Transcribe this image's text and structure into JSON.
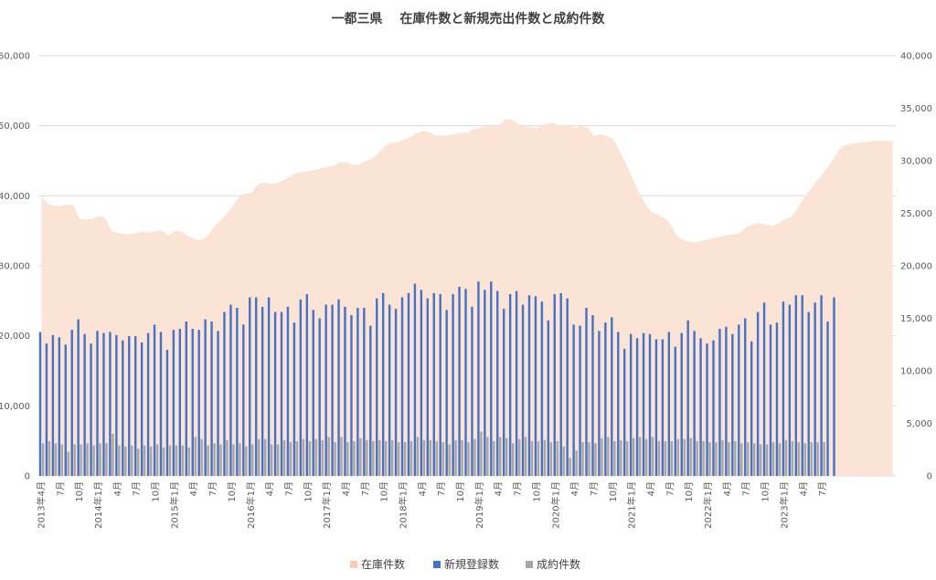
{
  "chart_data": {
    "type": "bar",
    "title": "一都三県　 在庫件数と新規売出件数と成約件数",
    "left_axis": {
      "min": 0,
      "max": 60000,
      "ticks": [
        "0",
        "10,000",
        "20,000",
        "30,000",
        "40,000",
        "50,000",
        "60,000"
      ]
    },
    "right_axis": {
      "min": 0,
      "max": 40000,
      "ticks": [
        "0",
        "5,000",
        "10,000",
        "15,000",
        "20,000",
        "25,000",
        "30,000",
        "35,000",
        "40,000"
      ]
    },
    "x_labels": [
      "2013年4月",
      "7月",
      "10月",
      "2014年1月",
      "4月",
      "7月",
      "10月",
      "2015年1月",
      "4月",
      "7月",
      "10月",
      "2016年1月",
      "4月",
      "7月",
      "10月",
      "2017年1月",
      "4月",
      "7月",
      "10月",
      "2018年1月",
      "4月",
      "7月",
      "10月",
      "2019年1月",
      "4月",
      "7月",
      "10月",
      "2020年1月",
      "4月",
      "7月",
      "10月",
      "2021年1月",
      "4月",
      "7月",
      "10月",
      "2022年1月",
      "4月",
      "7月",
      "10月",
      "2023年1月",
      "4月",
      "7月"
    ],
    "grid": true,
    "legend_position": "bottom",
    "series": [
      {
        "name": "在庫件数",
        "axis": "left",
        "style": "area",
        "color": "#fbe3d6",
        "values": [
          39900,
          38800,
          38600,
          38500,
          38800,
          38700,
          36700,
          36600,
          36700,
          37100,
          36900,
          35000,
          34700,
          34500,
          34500,
          34700,
          34900,
          34700,
          35000,
          35000,
          34300,
          35000,
          34900,
          34300,
          33900,
          33600,
          34100,
          35400,
          36300,
          37200,
          38400,
          39800,
          40300,
          40400,
          41600,
          41900,
          41700,
          41800,
          42200,
          42700,
          43200,
          43400,
          43500,
          43700,
          43900,
          44100,
          44300,
          44800,
          44800,
          44400,
          44500,
          44900,
          45300,
          46100,
          47000,
          47600,
          47600,
          48000,
          48400,
          48900,
          49200,
          49100,
          48600,
          48600,
          48600,
          48800,
          49000,
          49000,
          49500,
          49700,
          49900,
          49900,
          50000,
          50900,
          50900,
          50300,
          49900,
          49800,
          49700,
          50100,
          50400,
          50300,
          50000,
          50200,
          49700,
          50000,
          49700,
          48600,
          48800,
          48500,
          48100,
          46400,
          44600,
          42600,
          40700,
          38900,
          37700,
          37300,
          36900,
          36000,
          34300,
          33700,
          33400,
          33300,
          33600,
          33800,
          34000,
          34200,
          34400,
          34500,
          34700,
          35600,
          35900,
          36100,
          35900,
          35700,
          36000,
          36600,
          37000,
          38200,
          39600,
          40800,
          42000,
          43100,
          44400,
          45700,
          47100,
          47300,
          47500,
          47600,
          47700,
          47800,
          47900,
          47800,
          47900
        ]
      },
      {
        "name": "新規登録数",
        "axis": "right",
        "style": "bar",
        "color": "#4472c4",
        "values": [
          13700,
          12600,
          13400,
          13200,
          12500,
          13900,
          14900,
          13500,
          12600,
          13800,
          13600,
          13700,
          13400,
          12900,
          13300,
          13300,
          12700,
          13600,
          14400,
          13700,
          12000,
          13900,
          14000,
          14700,
          14000,
          13900,
          14900,
          14700,
          13800,
          15600,
          16300,
          16000,
          14400,
          17000,
          17000,
          16100,
          17000,
          15600,
          15600,
          16100,
          14600,
          16800,
          17300,
          15800,
          15000,
          16300,
          16300,
          16800,
          16100,
          15300,
          16000,
          16000,
          14300,
          16900,
          17400,
          16300,
          15900,
          17000,
          17400,
          18300,
          17700,
          16900,
          17400,
          17300,
          15800,
          17300,
          18000,
          17800,
          16100,
          18500,
          17700,
          18500,
          17600,
          15900,
          17300,
          17600,
          16300,
          17200,
          17100,
          16600,
          14800,
          17300,
          17400,
          16900,
          14400,
          14300,
          16000,
          15300,
          13800,
          14600,
          15100,
          13700,
          12100,
          13500,
          13100,
          13600,
          13500,
          13000,
          13000,
          13700,
          12300,
          13600,
          14800,
          13800,
          13100,
          12600,
          12900,
          14000,
          14200,
          13500,
          14400,
          15000,
          12800,
          15600,
          16500,
          14400,
          14600,
          16600,
          16300,
          17200,
          17200,
          15600,
          16500,
          17200,
          14700,
          17000
        ]
      },
      {
        "name": "成約件数",
        "axis": "right",
        "style": "bar",
        "color": "#a6a6a6",
        "values": [
          3100,
          3300,
          3100,
          3000,
          2300,
          3000,
          3000,
          3100,
          2900,
          3100,
          3100,
          4000,
          2900,
          2800,
          2900,
          2600,
          2900,
          2800,
          3000,
          2700,
          2900,
          2900,
          2900,
          2700,
          3700,
          3500,
          2900,
          3100,
          3000,
          3400,
          3000,
          3100,
          2800,
          3000,
          3500,
          3500,
          3000,
          3000,
          3400,
          3200,
          3300,
          3500,
          3300,
          3500,
          3400,
          3700,
          3200,
          3700,
          3200,
          3300,
          3600,
          3400,
          3300,
          3400,
          3300,
          3400,
          3200,
          3200,
          3300,
          3700,
          3400,
          3400,
          3300,
          3200,
          3000,
          3400,
          3400,
          3200,
          3500,
          4200,
          3700,
          3300,
          3700,
          3600,
          3100,
          3500,
          3700,
          3300,
          3300,
          3400,
          3200,
          3300,
          2800,
          1700,
          2400,
          3200,
          3200,
          3100,
          3600,
          3700,
          3300,
          3400,
          3300,
          3600,
          3700,
          3500,
          3700,
          3300,
          3300,
          3300,
          3500,
          3500,
          3600,
          3300,
          3300,
          3200,
          3200,
          3400,
          3200,
          3300,
          3100,
          3200,
          3100,
          3000,
          3000,
          3200,
          3100,
          3400,
          3300,
          3200,
          3100,
          3200,
          3200,
          3200
        ]
      }
    ]
  }
}
